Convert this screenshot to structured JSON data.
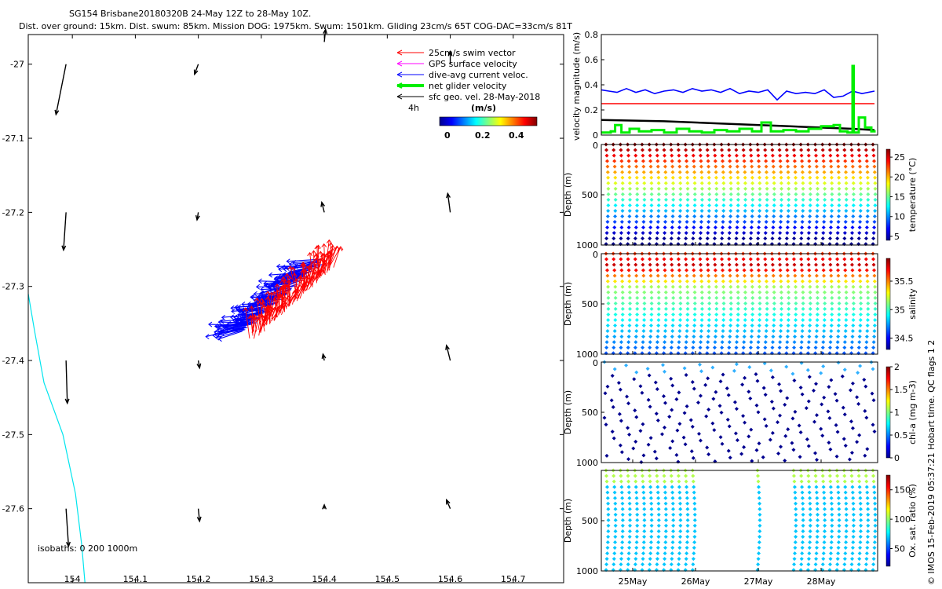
{
  "header": {
    "line1": "SG154 Brisbane20180320B 24-May 12Z to 28-May 10Z.",
    "line2": "Dist. over ground: 15km. Dist. swum: 85km. Mission DOG: 1975km. Swum: 1501km. Gliding 23cm/s 65T COG-DAC=33cm/s 81T"
  },
  "side_note": "© IMOS 15-Feb-2019 05:37:21 Hobart time. QC flags 1 2",
  "colors": {
    "swim": "#ff0000",
    "gps": "#ff00ff",
    "dac": "#0000ff",
    "net": "#00ee00",
    "geo": "#000000",
    "coast": "#00e5ee"
  },
  "chart_data": [
    {
      "id": "map",
      "type": "scatter",
      "xlim": [
        153.93,
        154.78
      ],
      "ylim": [
        -27.7,
        -26.96
      ],
      "xticks": [
        154,
        154.1,
        154.2,
        154.3,
        154.4,
        154.5,
        154.6,
        154.7
      ],
      "xtick_labels": [
        "154",
        "154.1",
        "154.2",
        "154.3",
        "154.4",
        "154.5",
        "154.6",
        "154.7"
      ],
      "yticks": [
        -27,
        -27.1,
        -27.2,
        -27.3,
        -27.4,
        -27.5,
        -27.6
      ],
      "ytick_labels": [
        "-27",
        "-27.1",
        "-27.2",
        "-27.3",
        "-27.4",
        "-27.5",
        "-27.6"
      ],
      "legend": [
        {
          "label": "25cm/s swim vector",
          "color_key": "swim",
          "style": "arrow"
        },
        {
          "label": "GPS surface velocity",
          "color_key": "gps",
          "style": "arrow"
        },
        {
          "label": "dive-avg current veloc.",
          "color_key": "dac",
          "style": "arrow"
        },
        {
          "label": "net glider velocity",
          "color_key": "net",
          "style": "thick"
        },
        {
          "label": "sfc geo. vel. 28-May-2018",
          "color_key": "geo",
          "style": "arrow"
        }
      ],
      "time_scale_label": "4h",
      "colorbar": {
        "label": "(m/s)",
        "ticks": [
          "0",
          "0.2",
          "0.4"
        ],
        "range": [
          -0.02,
          0.52
        ]
      },
      "isobaths_label": "isobaths: 0   200  1000m",
      "geo_vectors": [
        {
          "lon": 153.99,
          "lat": -27.0,
          "u": -0.08,
          "v": -0.4
        },
        {
          "lon": 154.2,
          "lat": -27.0,
          "u": -0.03,
          "v": -0.08
        },
        {
          "lon": 154.4,
          "lat": -26.97,
          "u": 0.01,
          "v": 0.1
        },
        {
          "lon": 153.99,
          "lat": -27.2,
          "u": -0.02,
          "v": -0.3
        },
        {
          "lon": 154.2,
          "lat": -27.2,
          "u": -0.01,
          "v": -0.06
        },
        {
          "lon": 154.4,
          "lat": -27.2,
          "u": -0.02,
          "v": 0.08
        },
        {
          "lon": 154.6,
          "lat": -27.2,
          "u": -0.02,
          "v": 0.15
        },
        {
          "lon": 153.99,
          "lat": -27.4,
          "u": 0.01,
          "v": -0.34
        },
        {
          "lon": 154.2,
          "lat": -27.4,
          "u": 0.01,
          "v": -0.06
        },
        {
          "lon": 154.4,
          "lat": -27.4,
          "u": -0.01,
          "v": 0.05
        },
        {
          "lon": 154.6,
          "lat": -27.4,
          "u": -0.03,
          "v": 0.12
        },
        {
          "lon": 153.99,
          "lat": -27.6,
          "u": 0.02,
          "v": -0.3
        },
        {
          "lon": 154.2,
          "lat": -27.6,
          "u": 0.01,
          "v": -0.1
        },
        {
          "lon": 154.4,
          "lat": -27.6,
          "u": 0.0,
          "v": 0.03
        },
        {
          "lon": 154.6,
          "lat": -27.6,
          "u": -0.03,
          "v": 0.07
        },
        {
          "lon": 154.6,
          "lat": -27.0,
          "u": 0.0,
          "v": 0.1
        }
      ],
      "track": {
        "start": [
          154.27,
          -27.36
        ],
        "end": [
          154.395,
          -27.265
        ]
      },
      "coastline": [
        [
          153.93,
          -27.31
        ],
        [
          153.94,
          -27.36
        ],
        [
          153.955,
          -27.43
        ],
        [
          153.985,
          -27.5
        ],
        [
          154.005,
          -27.58
        ],
        [
          154.015,
          -27.65
        ],
        [
          154.02,
          -27.7
        ]
      ]
    },
    {
      "id": "velocity",
      "type": "line",
      "ylabel": "velocity magnitude (m/s)",
      "xlim": [
        24.5,
        28.9
      ],
      "ylim": [
        0,
        0.8
      ],
      "yticks": [
        0,
        0.2,
        0.4,
        0.6,
        0.8
      ],
      "ytick_labels": [
        "0",
        "0.2",
        "0.4",
        "0.6",
        "0.8"
      ],
      "series": [
        {
          "name": "dive-avg current veloc.",
          "color_key": "dac",
          "x": [
            24.5,
            24.62,
            24.75,
            24.9,
            25.05,
            25.2,
            25.35,
            25.5,
            25.65,
            25.8,
            25.95,
            26.1,
            26.25,
            26.4,
            26.55,
            26.7,
            26.85,
            27.0,
            27.15,
            27.3,
            27.45,
            27.6,
            27.75,
            27.9,
            28.05,
            28.2,
            28.35,
            28.5,
            28.65,
            28.85
          ],
          "values": [
            0.36,
            0.35,
            0.34,
            0.37,
            0.34,
            0.36,
            0.33,
            0.35,
            0.36,
            0.34,
            0.37,
            0.35,
            0.36,
            0.34,
            0.37,
            0.33,
            0.35,
            0.34,
            0.36,
            0.28,
            0.35,
            0.33,
            0.34,
            0.33,
            0.36,
            0.3,
            0.31,
            0.35,
            0.33,
            0.35
          ]
        },
        {
          "name": "25cm/s swim vector",
          "color_key": "swim",
          "x": [
            24.5,
            28.85
          ],
          "values": [
            0.25,
            0.25
          ]
        },
        {
          "name": "sfc geo. vel.",
          "color_key": "geo",
          "x": [
            24.5,
            25.5,
            26.5,
            27.5,
            28.5,
            28.85
          ],
          "values": [
            0.12,
            0.11,
            0.09,
            0.07,
            0.05,
            0.04
          ]
        },
        {
          "name": "net glider velocity",
          "color_key": "net",
          "x": [
            24.5,
            24.65,
            24.72,
            24.82,
            24.95,
            25.1,
            25.3,
            25.5,
            25.7,
            25.9,
            26.1,
            26.3,
            26.5,
            26.7,
            26.9,
            27.05,
            27.2,
            27.4,
            27.6,
            27.8,
            28.0,
            28.2,
            28.3,
            28.42,
            28.5,
            28.52,
            28.6,
            28.7,
            28.8,
            28.85
          ],
          "values": [
            0.02,
            0.03,
            0.08,
            0.02,
            0.05,
            0.03,
            0.04,
            0.02,
            0.05,
            0.03,
            0.02,
            0.04,
            0.03,
            0.05,
            0.03,
            0.1,
            0.03,
            0.04,
            0.03,
            0.05,
            0.07,
            0.08,
            0.03,
            0.02,
            0.55,
            0.02,
            0.14,
            0.06,
            0.03,
            0.04
          ]
        }
      ]
    },
    {
      "id": "temperature",
      "type": "scatter",
      "ylabel": "Depth (m)",
      "yticks": [
        0,
        500,
        1000
      ],
      "ytick_labels": [
        "0",
        "500",
        "1000"
      ],
      "ylim": [
        1000,
        0
      ],
      "colorbar": {
        "label": "temperature (°C)",
        "ticks": [
          "5",
          "10",
          "15",
          "20",
          "25"
        ],
        "range": [
          4,
          27
        ]
      }
    },
    {
      "id": "salinity",
      "type": "scatter",
      "ylabel": "Depth (m)",
      "yticks": [
        0,
        500,
        1000
      ],
      "ytick_labels": [
        "0",
        "500",
        "1000"
      ],
      "ylim": [
        1000,
        0
      ],
      "colorbar": {
        "label": "salinity",
        "ticks": [
          "34.5",
          "35",
          "35.5"
        ],
        "range": [
          34.3,
          35.9
        ]
      }
    },
    {
      "id": "chla",
      "type": "scatter",
      "ylabel": "Depth (m)",
      "yticks": [
        0,
        500,
        1000
      ],
      "ytick_labels": [
        "0",
        "500",
        "1000"
      ],
      "ylim": [
        1000,
        0
      ],
      "colorbar": {
        "label": "chl-a (mg m-3)",
        "ticks": [
          "0",
          "0.5",
          "1",
          "1.5",
          "2"
        ],
        "range": [
          0,
          2
        ]
      }
    },
    {
      "id": "oxygen",
      "type": "scatter",
      "ylabel": "Depth (m)",
      "yticks": [
        500,
        1000
      ],
      "ytick_labels": [
        "500",
        "1000"
      ],
      "ylim": [
        1000,
        0
      ],
      "colorbar": {
        "label": "Ox. sat. ratio (%)",
        "ticks": [
          "50",
          "100",
          "150"
        ],
        "range": [
          20,
          175
        ]
      },
      "xticks": [
        "25May",
        "26May",
        "27May",
        "28May"
      ]
    }
  ]
}
